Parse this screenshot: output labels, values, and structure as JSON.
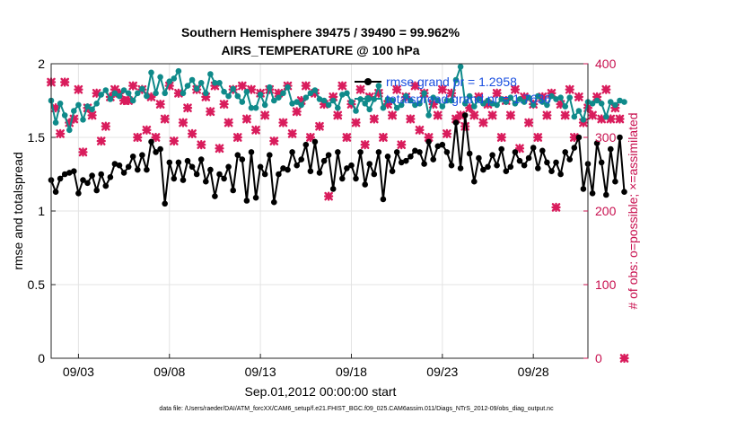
{
  "chart_data": {
    "type": "line",
    "title": "Southern Hemisphere 39475 / 39490 = 99.962%",
    "subtitle": "AIRS_TEMPERATURE @ 100 hPa",
    "xlabel": "Sep.01,2012 00:00:00 start",
    "ylabel": "rmse and totalspread",
    "ylabel_right": "# of obs: o=possible; ×=assimilated",
    "footer": "data file: /Users/raeder/DAI/ATM_forcXX/CAM6_setup/f.e21.FHIST_BGC.f09_025.CAM6assim.011/Diags_NTrS_2012-09/obs_diag_output.nc",
    "x_ticks": [
      "09/03",
      "09/08",
      "09/13",
      "09/18",
      "09/23",
      "09/28"
    ],
    "x_tick_days": [
      3,
      8,
      13,
      18,
      23,
      28
    ],
    "xlim": [
      1.5,
      31.0
    ],
    "ylim": [
      0,
      2
    ],
    "y_ticks": [
      "0",
      "0.5",
      "1",
      "1.5",
      "2"
    ],
    "ylim_right": [
      0,
      400
    ],
    "y_ticks_right": [
      "0",
      "100",
      "200",
      "300",
      "400"
    ],
    "grid": true,
    "legend_position": "top-right",
    "colors": {
      "rmse": "#000000",
      "spread": "#0f8a8a",
      "obs": "#d91c5c",
      "legend_text": "#1a4fe0",
      "right_axis": "#c8104f"
    },
    "legend": [
      {
        "label": "rmse grand pr = 1.2958",
        "series": "rmse"
      },
      {
        "label": "totalspread grand pr = 1.7636",
        "series": "spread"
      }
    ],
    "series": [
      {
        "name": "rmse",
        "axis": "left",
        "x_start": 1.5,
        "x_step": 0.25,
        "values": [
          1.21,
          1.13,
          1.22,
          1.25,
          1.26,
          1.27,
          1.12,
          1.21,
          1.19,
          1.24,
          1.14,
          1.25,
          1.17,
          1.23,
          1.32,
          1.31,
          1.26,
          1.3,
          1.37,
          1.28,
          1.38,
          1.28,
          1.47,
          1.4,
          1.42,
          1.05,
          1.33,
          1.22,
          1.33,
          1.21,
          1.34,
          1.3,
          1.25,
          1.35,
          1.2,
          1.28,
          1.1,
          1.25,
          1.22,
          1.3,
          1.14,
          1.38,
          1.35,
          1.07,
          1.4,
          1.09,
          1.3,
          1.25,
          1.38,
          1.06,
          1.25,
          1.29,
          1.28,
          1.4,
          1.31,
          1.35,
          1.45,
          1.27,
          1.47,
          1.26,
          1.34,
          1.38,
          1.15,
          1.4,
          1.22,
          1.29,
          1.31,
          1.22,
          1.4,
          1.18,
          1.32,
          1.25,
          1.4,
          1.08,
          1.37,
          1.27,
          1.4,
          1.33,
          1.34,
          1.37,
          1.41,
          1.4,
          1.32,
          1.47,
          1.35,
          1.44,
          1.45,
          1.4,
          1.31,
          1.6,
          1.29,
          1.65,
          1.39,
          1.2,
          1.36,
          1.28,
          1.3,
          1.38,
          1.31,
          1.42,
          1.27,
          1.3,
          1.4,
          1.34,
          1.31,
          1.36,
          1.43,
          1.29,
          1.41,
          1.33,
          1.27,
          1.33,
          1.25,
          1.4,
          1.35,
          1.43,
          1.5,
          1.15,
          1.32,
          1.12,
          1.46,
          1.33,
          1.11,
          1.42,
          1.2,
          1.5,
          1.13
        ]
      },
      {
        "name": "totalspread",
        "axis": "left",
        "x_start": 1.5,
        "x_step": 0.25,
        "values": [
          1.75,
          1.6,
          1.73,
          1.65,
          1.55,
          1.68,
          1.72,
          1.62,
          1.71,
          1.69,
          1.73,
          1.79,
          1.82,
          1.76,
          1.8,
          1.78,
          1.82,
          1.8,
          1.75,
          1.8,
          1.83,
          1.78,
          1.94,
          1.8,
          1.91,
          1.8,
          1.88,
          1.9,
          1.95,
          1.8,
          1.85,
          1.89,
          1.83,
          1.87,
          1.8,
          1.93,
          1.87,
          1.87,
          1.81,
          1.78,
          1.83,
          1.78,
          1.74,
          1.81,
          1.7,
          1.7,
          1.79,
          1.72,
          1.84,
          1.75,
          1.77,
          1.8,
          1.84,
          1.73,
          1.74,
          1.72,
          1.77,
          1.8,
          1.82,
          1.76,
          1.75,
          1.72,
          1.75,
          1.7,
          1.79,
          1.8,
          1.74,
          1.68,
          1.76,
          1.73,
          1.69,
          1.76,
          1.85,
          1.7,
          1.76,
          1.75,
          1.7,
          1.72,
          1.78,
          1.75,
          1.72,
          1.73,
          1.8,
          1.65,
          1.77,
          1.75,
          1.71,
          1.75,
          1.75,
          1.89,
          1.98,
          1.73,
          1.78,
          1.71,
          1.76,
          1.73,
          1.75,
          1.73,
          1.72,
          1.76,
          1.74,
          1.77,
          1.73,
          1.76,
          1.74,
          1.77,
          1.72,
          1.78,
          1.74,
          1.72,
          1.78,
          1.76,
          1.77,
          1.71,
          1.77,
          1.64,
          1.68,
          1.62,
          1.74,
          1.73,
          1.75,
          1.73,
          1.64,
          1.74,
          1.72,
          1.75,
          1.74
        ]
      },
      {
        "name": "obs",
        "axis": "right",
        "x_start": 1.5,
        "x_step": 0.25,
        "values": [
          375,
          340,
          305,
          375,
          320,
          325,
          365,
          280,
          340,
          330,
          360,
          295,
          315,
          355,
          365,
          360,
          350,
          350,
          370,
          300,
          365,
          310,
          355,
          300,
          345,
          325,
          370,
          295,
          360,
          320,
          340,
          305,
          365,
          290,
          355,
          335,
          370,
          285,
          345,
          320,
          365,
          300,
          370,
          325,
          365,
          310,
          360,
          330,
          365,
          295,
          360,
          320,
          370,
          305,
          335,
          350,
          370,
          300,
          360,
          315,
          345,
          220,
          355,
          330,
          370,
          300,
          345,
          320,
          365,
          290,
          355,
          325,
          360,
          300,
          345,
          330,
          365,
          290,
          355,
          325,
          370,
          310,
          360,
          300,
          345,
          330,
          365,
          305,
          360,
          325,
          330,
          315,
          340,
          330,
          355,
          320,
          345,
          330,
          360,
          300,
          350,
          330,
          365,
          285,
          355,
          320,
          345,
          300,
          355,
          330,
          360,
          205,
          345,
          330,
          365,
          300,
          355,
          320,
          340,
          330,
          355,
          325,
          365,
          325,
          340,
          325,
          0
        ]
      }
    ]
  }
}
